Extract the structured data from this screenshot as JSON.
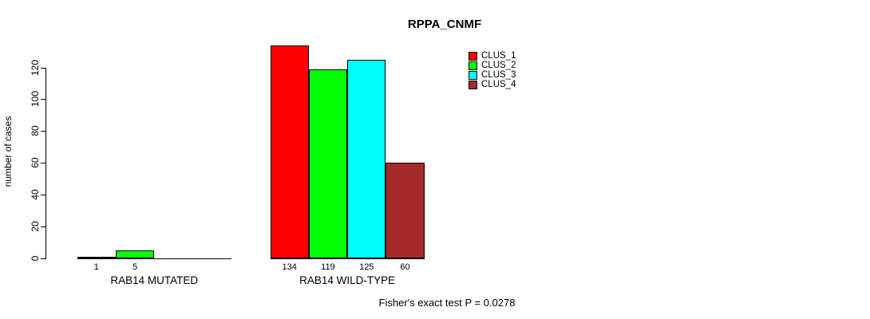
{
  "chart_data": {
    "type": "bar",
    "title": "RPPA_CNMF",
    "ylabel": "number of cases",
    "xlabel": "",
    "ylim": [
      0,
      120
    ],
    "yticks": [
      0,
      20,
      40,
      60,
      80,
      100,
      120
    ],
    "grid": false,
    "legend_position": "right",
    "categories": [
      "RAB14 MUTATED",
      "RAB14 WILD-TYPE"
    ],
    "series": [
      {
        "name": "CLUS_1",
        "color": "#FF0000",
        "values": [
          1,
          134
        ]
      },
      {
        "name": "CLUS_2",
        "color": "#00FF00",
        "values": [
          5,
          119
        ]
      },
      {
        "name": "CLUS_3",
        "color": "#00FFFF",
        "values": [
          0,
          125
        ]
      },
      {
        "name": "CLUS_4",
        "color": "#A52A2A",
        "values": [
          0,
          60
        ]
      }
    ],
    "bar_value_labels": [
      [
        "1",
        "5",
        "",
        ""
      ],
      [
        "134",
        "119",
        "125",
        "60"
      ]
    ],
    "annotation": "Fisher's exact test P = 0.0278"
  }
}
